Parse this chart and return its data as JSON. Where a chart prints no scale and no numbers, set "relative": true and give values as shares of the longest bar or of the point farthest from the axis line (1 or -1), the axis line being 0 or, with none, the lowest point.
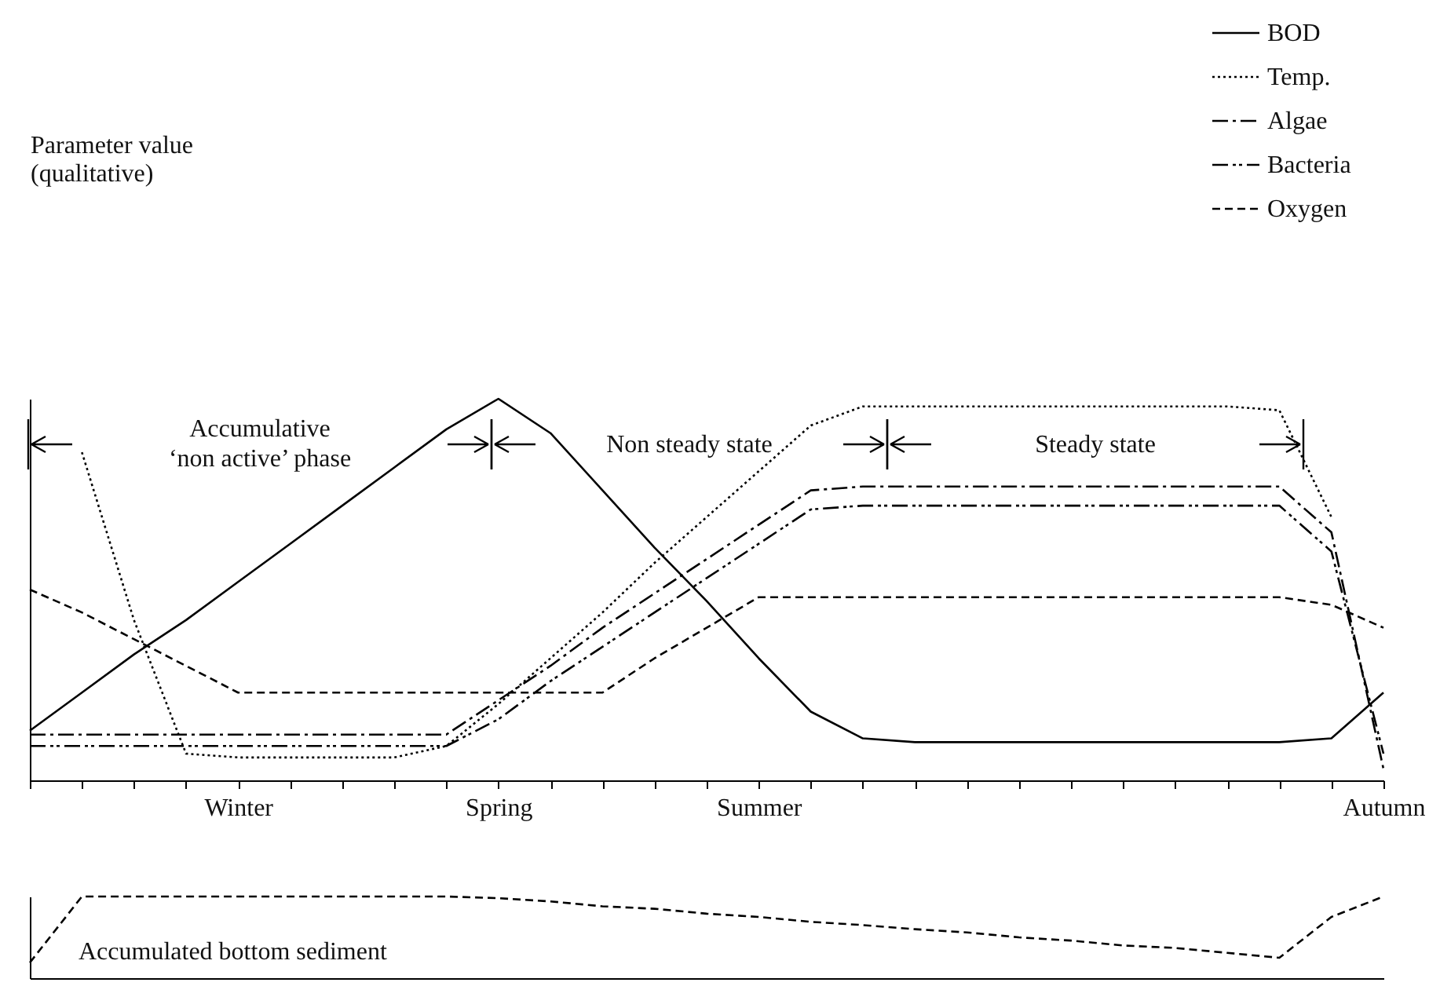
{
  "chart_data": [
    {
      "type": "line",
      "relative": true,
      "ylabel": "Parameter value\n(qualitative)",
      "legend": "top right",
      "grid": false,
      "categories": [
        null,
        null,
        null,
        null,
        "Winter",
        null,
        null,
        null,
        null,
        "Spring",
        null,
        null,
        null,
        null,
        "Summer",
        null,
        null,
        null,
        null,
        null,
        null,
        null,
        null,
        null,
        null,
        null,
        "Autumn"
      ],
      "annotations": [
        "Accumulative\n‘non active’ phase",
        "Non steady state",
        "Steady state"
      ],
      "series": [
        {
          "name": "BOD",
          "color": "#000000",
          "line_style": "solid",
          "values": [
            0.13,
            0.23,
            0.33,
            0.42,
            0.52,
            0.62,
            0.72,
            0.82,
            0.92,
            1.0,
            0.91,
            0.76,
            0.61,
            0.47,
            0.32,
            0.18,
            0.11,
            0.1,
            0.1,
            0.1,
            0.1,
            0.1,
            0.1,
            0.1,
            0.1,
            0.11,
            0.23
          ]
        },
        {
          "name": "Temp.",
          "color": "#000000",
          "line_style": "dotted",
          "values": [
            null,
            0.86,
            0.42,
            0.07,
            0.06,
            0.06,
            0.06,
            0.06,
            0.09,
            0.2,
            0.32,
            0.44,
            0.57,
            0.69,
            0.81,
            0.93,
            0.98,
            0.98,
            0.98,
            0.98,
            0.98,
            0.98,
            0.98,
            0.98,
            0.97,
            0.69,
            null
          ]
        },
        {
          "name": "Algae",
          "color": "#000000",
          "line_style": "dashdot",
          "values": [
            0.12,
            0.12,
            0.12,
            0.12,
            0.12,
            0.12,
            0.12,
            0.12,
            0.12,
            0.21,
            0.3,
            0.4,
            0.49,
            0.58,
            0.67,
            0.76,
            0.77,
            0.77,
            0.77,
            0.77,
            0.77,
            0.77,
            0.77,
            0.77,
            0.77,
            0.65,
            0.03
          ]
        },
        {
          "name": "Bacteria",
          "color": "#000000",
          "line_style": "dashdotdot",
          "values": [
            0.09,
            0.09,
            0.09,
            0.09,
            0.09,
            0.09,
            0.09,
            0.09,
            0.09,
            0.16,
            0.26,
            0.35,
            0.44,
            0.53,
            0.62,
            0.71,
            0.72,
            0.72,
            0.72,
            0.72,
            0.72,
            0.72,
            0.72,
            0.72,
            0.72,
            0.6,
            0.07
          ]
        },
        {
          "name": "Oxygen",
          "color": "#000000",
          "line_style": "dashed",
          "values": [
            0.5,
            0.44,
            0.37,
            0.3,
            0.23,
            0.23,
            0.23,
            0.23,
            0.23,
            0.23,
            0.23,
            0.23,
            0.32,
            0.4,
            0.48,
            0.48,
            0.48,
            0.48,
            0.48,
            0.48,
            0.48,
            0.48,
            0.48,
            0.48,
            0.48,
            0.46,
            0.4
          ]
        }
      ]
    },
    {
      "type": "line",
      "relative": true,
      "legend": false,
      "grid": false,
      "categories": [
        null,
        null,
        null,
        null,
        null,
        null,
        null,
        null,
        null,
        null,
        null,
        null,
        null,
        null,
        null,
        null,
        null,
        null,
        null,
        null,
        null,
        null,
        null,
        null,
        null,
        null,
        null
      ],
      "annotations": [
        "Accumulated bottom sediment"
      ],
      "series": [
        {
          "color": "#000000",
          "line_style": "dashed",
          "values": [
            0.19,
            1.0,
            1.0,
            1.0,
            1.0,
            1.0,
            1.0,
            1.0,
            1.0,
            0.98,
            0.94,
            0.88,
            0.85,
            0.79,
            0.75,
            0.69,
            0.65,
            0.6,
            0.56,
            0.5,
            0.46,
            0.4,
            0.37,
            0.31,
            0.25,
            0.75,
            1.0
          ]
        }
      ]
    }
  ]
}
